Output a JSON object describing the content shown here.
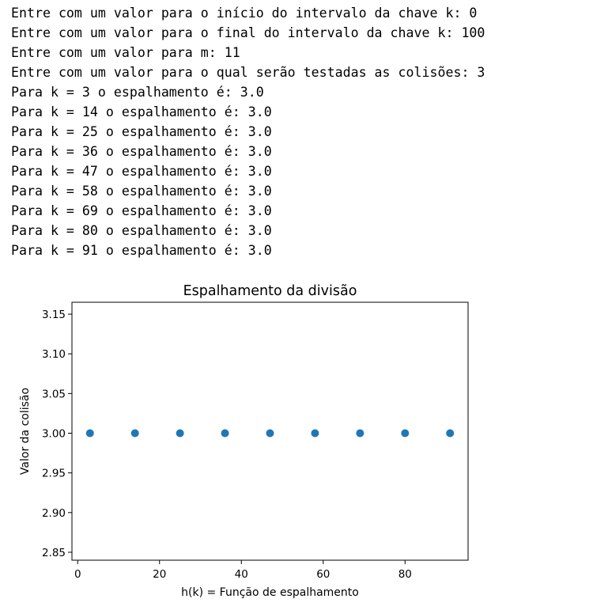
{
  "console": {
    "lines": [
      "Entre com um valor para o início do intervalo da chave k: 0",
      "Entre com um valor para o final do intervalo da chave k: 100",
      "Entre com um valor para m: 11",
      "Entre com um valor para o qual serão testadas as colisões: 3",
      "Para k = 3 o espalhamento é: 3.0",
      "Para k = 14 o espalhamento é: 3.0",
      "Para k = 25 o espalhamento é: 3.0",
      "Para k = 36 o espalhamento é: 3.0",
      "Para k = 47 o espalhamento é: 3.0",
      "Para k = 58 o espalhamento é: 3.0",
      "Para k = 69 o espalhamento é: 3.0",
      "Para k = 80 o espalhamento é: 3.0",
      "Para k = 91 o espalhamento é: 3.0"
    ]
  },
  "chart_data": {
    "type": "scatter",
    "title": "Espalhamento da divisão",
    "xlabel": "h(k) = Função de espalhamento",
    "ylabel": "Valor da colisão",
    "x": [
      3,
      14,
      25,
      36,
      47,
      58,
      69,
      80,
      91
    ],
    "y": [
      3.0,
      3.0,
      3.0,
      3.0,
      3.0,
      3.0,
      3.0,
      3.0,
      3.0
    ],
    "xlim": [
      -1.4,
      95.4
    ],
    "ylim": [
      2.84,
      3.165
    ],
    "xticks": [
      0,
      20,
      40,
      60,
      80
    ],
    "xtick_labels": [
      "0",
      "20",
      "40",
      "60",
      "80"
    ],
    "yticks": [
      2.85,
      2.9,
      2.95,
      3.0,
      3.05,
      3.1,
      3.15
    ],
    "ytick_labels": [
      "2.85",
      "2.90",
      "2.95",
      "3.00",
      "3.05",
      "3.10",
      "3.15"
    ],
    "grid": false,
    "marker_color": "#1f77b4"
  }
}
